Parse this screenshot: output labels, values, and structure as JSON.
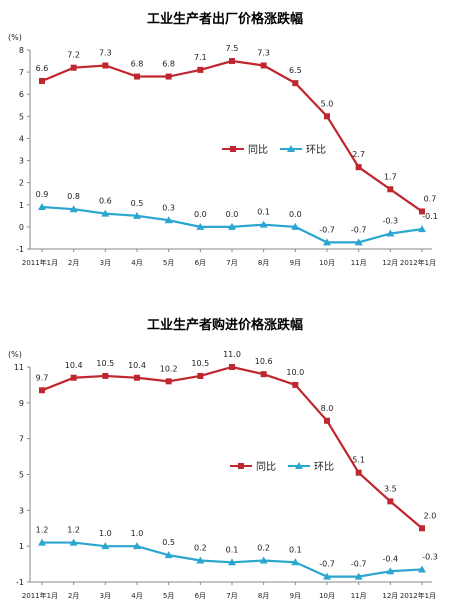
{
  "chart_data": [
    {
      "type": "line",
      "title": "工业生产者出厂价格涨跌幅",
      "unit": "(%)",
      "categories": [
        "2011年1月",
        "2月",
        "3月",
        "4月",
        "5月",
        "6月",
        "7月",
        "8月",
        "9月",
        "10月",
        "11月",
        "12月",
        "2012年1月"
      ],
      "series": [
        {
          "name": "同比",
          "color": "#c0262d",
          "marker": "square",
          "values": [
            6.6,
            7.2,
            7.3,
            6.8,
            6.8,
            7.1,
            7.5,
            7.3,
            6.5,
            5.0,
            2.7,
            1.7,
            0.7
          ],
          "labels": [
            "6.6",
            "7.2",
            "7.3",
            "6.8",
            "6.8",
            "7.1",
            "7.5",
            "7.3",
            "6.5",
            "5.0",
            "2.7",
            "1.7",
            "0.7"
          ]
        },
        {
          "name": "环比",
          "color": "#2ba6cf",
          "marker": "triangle",
          "values": [
            0.9,
            0.8,
            0.6,
            0.5,
            0.3,
            0.0,
            0.0,
            0.1,
            0.0,
            -0.7,
            -0.7,
            -0.3,
            -0.1
          ],
          "labels": [
            "0.9",
            "0.8",
            "0.6",
            "0.5",
            "0.3",
            "0.0",
            "0.0",
            "0.1",
            "0.0",
            "-0.7",
            "-0.7",
            "-0.3",
            "-0.1"
          ]
        }
      ],
      "ylim": [
        -1,
        8
      ],
      "yticks": [
        -1,
        0,
        1,
        2,
        3,
        4,
        5,
        6,
        7,
        8
      ],
      "legend": "center-right",
      "grid": false
    },
    {
      "type": "line",
      "title": "工业生产者购进价格涨跌幅",
      "unit": "(%)",
      "categories": [
        "2011年1月",
        "2月",
        "3月",
        "4月",
        "5月",
        "6月",
        "7月",
        "8月",
        "9月",
        "10月",
        "11月",
        "12月",
        "2012年1月"
      ],
      "series": [
        {
          "name": "同比",
          "color": "#c0262d",
          "marker": "square",
          "values": [
            9.7,
            10.4,
            10.5,
            10.4,
            10.2,
            10.5,
            11.0,
            10.6,
            10.0,
            8.0,
            5.1,
            3.5,
            2.0
          ],
          "labels": [
            "9.7",
            "10.4",
            "10.5",
            "10.4",
            "10.2",
            "10.5",
            "11.0",
            "10.6",
            "10.0",
            "8.0",
            "5.1",
            "3.5",
            "2.0"
          ]
        },
        {
          "name": "环比",
          "color": "#2ba6cf",
          "marker": "triangle",
          "values": [
            1.2,
            1.2,
            1.0,
            1.0,
            0.5,
            0.2,
            0.1,
            0.2,
            0.1,
            -0.7,
            -0.7,
            -0.4,
            -0.3
          ],
          "labels": [
            "1.2",
            "1.2",
            "1.0",
            "1.0",
            "0.5",
            "0.2",
            "0.1",
            "0.2",
            "0.1",
            "-0.7",
            "-0.7",
            "-0.4",
            "-0.3"
          ]
        }
      ],
      "ylim": [
        -1,
        11
      ],
      "yticks": [
        -1,
        1,
        3,
        5,
        7,
        9,
        11
      ],
      "legend": "center-right",
      "grid": false
    }
  ]
}
